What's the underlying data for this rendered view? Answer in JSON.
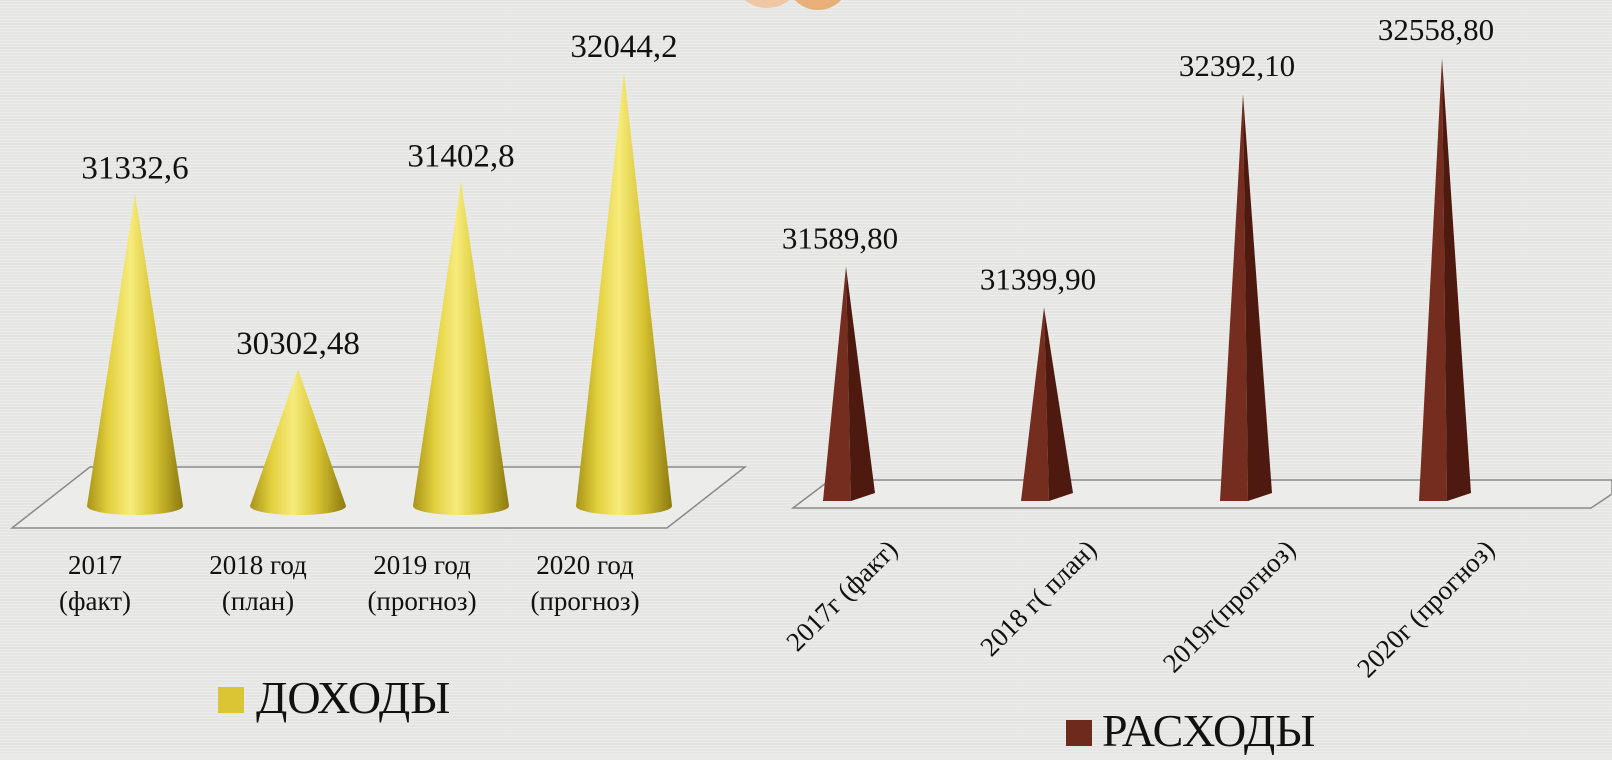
{
  "chart_data": [
    {
      "type": "bar",
      "shape": "cone",
      "categories": [
        [
          "2017",
          "(факт)"
        ],
        [
          "2018 год",
          "(план)"
        ],
        [
          "2019 год",
          "(прогноз)"
        ],
        [
          "2020 год",
          "(прогноз)"
        ]
      ],
      "series": [
        {
          "name": "ДОХОДЫ",
          "color": "#d9c531",
          "values": [
            31332.6,
            30302.48,
            31402.8,
            32044.2
          ],
          "labels": [
            "31332,6",
            "30302,48",
            "31402,8",
            "32044,2"
          ]
        }
      ],
      "legend": "bottom",
      "grid": false
    },
    {
      "type": "bar",
      "shape": "pyramid",
      "categories": [
        "2017г (факт)",
        "2018 г( план)",
        "2019г(прогноз)",
        "2020г (прогноз)"
      ],
      "series": [
        {
          "name": "РАСХОДЫ",
          "color": "#6e2a1c",
          "values": [
            31589.8,
            31399.9,
            32392.1,
            32558.8
          ],
          "labels": [
            "31589,80",
            "31399,90",
            "32392,10",
            "32558,80"
          ]
        }
      ],
      "legend": "bottom",
      "grid": false
    }
  ]
}
